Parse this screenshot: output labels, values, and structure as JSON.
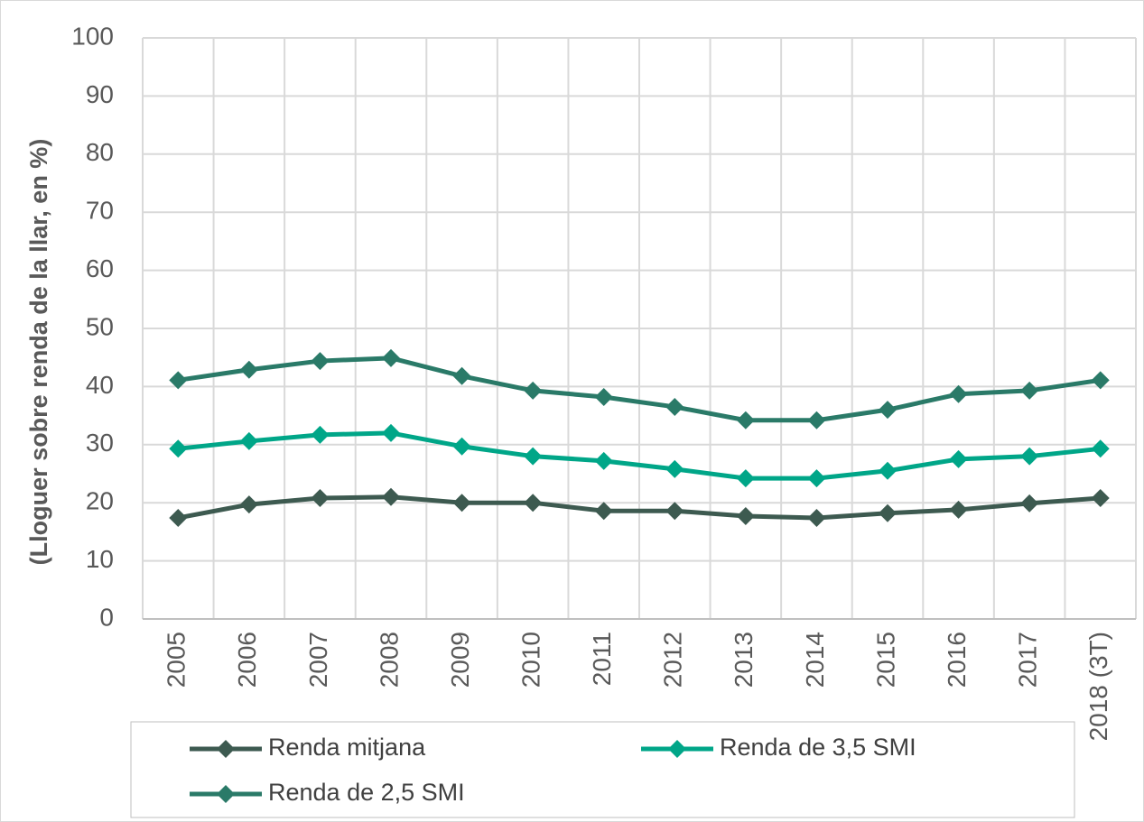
{
  "chart_data": {
    "type": "line",
    "y_label": "(Lloguer sobre renda de la llar, en %)",
    "categories": [
      "2005",
      "2006",
      "2007",
      "2008",
      "2009",
      "2010",
      "2011",
      "2012",
      "2013",
      "2014",
      "2015",
      "2016",
      "2017",
      "2018 (3T)"
    ],
    "series": [
      {
        "name": "Renda mitjana",
        "color": "#3d5a50",
        "values": [
          17.4,
          19.7,
          20.8,
          21.0,
          20.0,
          20.0,
          18.6,
          18.6,
          17.7,
          17.4,
          18.2,
          18.8,
          19.9,
          20.8
        ]
      },
      {
        "name": "Renda de 3,5 SMI",
        "color": "#00a688",
        "values": [
          29.3,
          30.6,
          31.7,
          32.0,
          29.7,
          28.0,
          27.2,
          25.8,
          24.2,
          24.2,
          25.5,
          27.5,
          28.0,
          29.3
        ]
      },
      {
        "name": "Renda de 2,5 SMI",
        "color": "#2a7a68",
        "values": [
          41.1,
          42.9,
          44.4,
          44.9,
          41.8,
          39.3,
          38.2,
          36.5,
          34.2,
          34.2,
          36.0,
          38.7,
          39.3,
          41.1
        ]
      }
    ],
    "ylim": [
      0,
      100
    ],
    "yticks": [
      0,
      10,
      20,
      30,
      40,
      50,
      60,
      70,
      80,
      90,
      100
    ],
    "grid": true,
    "legend": "bottom"
  }
}
